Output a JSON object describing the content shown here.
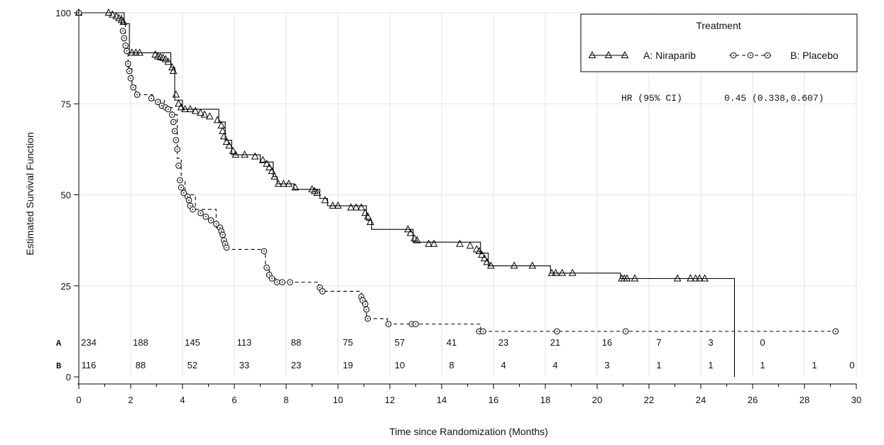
{
  "chart_data": {
    "type": "line",
    "xlabel": "Time since Randomization (Months)",
    "ylabel": "Estimated Survival Function",
    "xlim": [
      0,
      30
    ],
    "ylim": [
      0,
      100
    ],
    "x_ticks": [
      0,
      2,
      4,
      6,
      8,
      10,
      12,
      14,
      16,
      18,
      20,
      22,
      24,
      26,
      28,
      30
    ],
    "y_ticks": [
      0,
      25,
      50,
      75,
      100
    ],
    "grid": true,
    "legend": {
      "title": "Treatment",
      "position": "top-right",
      "entries": [
        "A: Niraparib",
        "B: Placebo"
      ]
    },
    "annotation": {
      "label": "HR (95% CI)",
      "value": "0.45 (0.338,0.607)"
    },
    "series": [
      {
        "name": "A: Niraparib",
        "line_style": "solid",
        "marker": "triangle",
        "color": "#000000",
        "steps": [
          [
            0,
            100
          ],
          [
            1.75,
            97
          ],
          [
            1.95,
            89
          ],
          [
            3.55,
            85
          ],
          [
            3.7,
            76
          ],
          [
            4.0,
            73.5
          ],
          [
            5.4,
            70
          ],
          [
            5.65,
            65
          ],
          [
            5.9,
            61
          ],
          [
            7.0,
            59
          ],
          [
            7.5,
            55
          ],
          [
            7.65,
            53
          ],
          [
            8.3,
            51.5
          ],
          [
            9.3,
            49
          ],
          [
            9.6,
            47
          ],
          [
            11.1,
            43
          ],
          [
            11.3,
            40.5
          ],
          [
            12.9,
            37
          ],
          [
            15.5,
            34
          ],
          [
            15.8,
            30.5
          ],
          [
            18.2,
            28.5
          ],
          [
            20.9,
            27
          ],
          [
            25.3,
            0
          ]
        ],
        "censored": [
          [
            0,
            100
          ],
          [
            1.15,
            100
          ],
          [
            1.3,
            99.5
          ],
          [
            1.45,
            99
          ],
          [
            1.55,
            98.5
          ],
          [
            1.65,
            98
          ],
          [
            1.72,
            97.5
          ],
          [
            2.05,
            89
          ],
          [
            2.2,
            89
          ],
          [
            2.35,
            89
          ],
          [
            2.95,
            88.5
          ],
          [
            3.05,
            88
          ],
          [
            3.15,
            87.8
          ],
          [
            3.25,
            87.6
          ],
          [
            3.35,
            87.2
          ],
          [
            3.45,
            86.5
          ],
          [
            3.6,
            85
          ],
          [
            3.65,
            84
          ],
          [
            3.75,
            77.5
          ],
          [
            3.85,
            75
          ],
          [
            3.95,
            74
          ],
          [
            4.1,
            73.5
          ],
          [
            4.3,
            73.5
          ],
          [
            4.5,
            73
          ],
          [
            4.7,
            72.5
          ],
          [
            4.85,
            72
          ],
          [
            5.05,
            71.5
          ],
          [
            5.35,
            70.5
          ],
          [
            5.5,
            69
          ],
          [
            5.55,
            67.5
          ],
          [
            5.6,
            66
          ],
          [
            5.7,
            64.5
          ],
          [
            5.8,
            63.5
          ],
          [
            5.95,
            62
          ],
          [
            6.05,
            61
          ],
          [
            6.4,
            61
          ],
          [
            6.8,
            60.5
          ],
          [
            7.1,
            59.5
          ],
          [
            7.25,
            58.5
          ],
          [
            7.35,
            57.5
          ],
          [
            7.45,
            56.5
          ],
          [
            7.55,
            55
          ],
          [
            7.7,
            53
          ],
          [
            7.9,
            53
          ],
          [
            8.1,
            53
          ],
          [
            8.35,
            52
          ],
          [
            9.0,
            51.5
          ],
          [
            9.1,
            51
          ],
          [
            9.2,
            50.5
          ],
          [
            9.5,
            48.5
          ],
          [
            9.8,
            47
          ],
          [
            10.0,
            47
          ],
          [
            10.5,
            46.5
          ],
          [
            10.7,
            46.5
          ],
          [
            10.9,
            46.5
          ],
          [
            11.05,
            45
          ],
          [
            11.15,
            44
          ],
          [
            11.25,
            42.5
          ],
          [
            12.7,
            40.5
          ],
          [
            12.8,
            39.5
          ],
          [
            12.95,
            38
          ],
          [
            13.05,
            37.5
          ],
          [
            13.5,
            36.5
          ],
          [
            13.7,
            36.5
          ],
          [
            14.7,
            36.5
          ],
          [
            15.1,
            36
          ],
          [
            15.35,
            35
          ],
          [
            15.45,
            34.5
          ],
          [
            15.55,
            33.5
          ],
          [
            15.65,
            32.5
          ],
          [
            15.75,
            31.5
          ],
          [
            15.9,
            30.5
          ],
          [
            16.8,
            30.5
          ],
          [
            17.5,
            30.5
          ],
          [
            18.25,
            28.5
          ],
          [
            18.4,
            28.5
          ],
          [
            18.65,
            28.5
          ],
          [
            19.05,
            28.5
          ],
          [
            20.95,
            27
          ],
          [
            21.05,
            27
          ],
          [
            21.15,
            27
          ],
          [
            21.45,
            27
          ],
          [
            23.1,
            27
          ],
          [
            23.6,
            27
          ],
          [
            23.8,
            27
          ],
          [
            23.95,
            27
          ],
          [
            24.15,
            27
          ]
        ]
      },
      {
        "name": "B: Placebo",
        "line_style": "dashed",
        "marker": "circle",
        "color": "#000000",
        "steps": [
          [
            0,
            100
          ],
          [
            1.65,
            97
          ],
          [
            1.8,
            90
          ],
          [
            1.9,
            85
          ],
          [
            2.05,
            80
          ],
          [
            2.2,
            77.5
          ],
          [
            2.85,
            76
          ],
          [
            3.3,
            74
          ],
          [
            3.6,
            72
          ],
          [
            3.8,
            60
          ],
          [
            3.95,
            54
          ],
          [
            4.1,
            50
          ],
          [
            4.5,
            46
          ],
          [
            5.3,
            41
          ],
          [
            5.55,
            37.5
          ],
          [
            5.7,
            35
          ],
          [
            7.2,
            30
          ],
          [
            7.35,
            27
          ],
          [
            7.6,
            26
          ],
          [
            9.25,
            24.5
          ],
          [
            9.4,
            23.5
          ],
          [
            10.9,
            21.5
          ],
          [
            11.1,
            16
          ],
          [
            11.9,
            14.5
          ],
          [
            15.5,
            12.5
          ],
          [
            29.2,
            12.5
          ]
        ],
        "censored": [
          [
            0,
            100
          ],
          [
            1.7,
            95
          ],
          [
            1.75,
            93
          ],
          [
            1.8,
            91
          ],
          [
            1.85,
            89.5
          ],
          [
            1.9,
            86
          ],
          [
            1.95,
            84
          ],
          [
            2.0,
            82
          ],
          [
            2.1,
            79.5
          ],
          [
            2.25,
            77.5
          ],
          [
            2.8,
            76.5
          ],
          [
            3.05,
            75.5
          ],
          [
            3.2,
            74.5
          ],
          [
            3.35,
            74
          ],
          [
            3.45,
            73.5
          ],
          [
            3.6,
            72
          ],
          [
            3.65,
            70
          ],
          [
            3.7,
            67.5
          ],
          [
            3.75,
            65
          ],
          [
            3.8,
            62.5
          ],
          [
            3.85,
            58
          ],
          [
            3.9,
            54
          ],
          [
            3.95,
            52
          ],
          [
            4.05,
            50.5
          ],
          [
            4.2,
            49.5
          ],
          [
            4.25,
            48.5
          ],
          [
            4.3,
            47
          ],
          [
            4.4,
            46
          ],
          [
            4.7,
            45
          ],
          [
            4.9,
            44
          ],
          [
            5.1,
            43
          ],
          [
            5.3,
            42
          ],
          [
            5.45,
            41
          ],
          [
            5.5,
            40
          ],
          [
            5.55,
            39
          ],
          [
            5.6,
            37.5
          ],
          [
            5.65,
            36.5
          ],
          [
            5.7,
            35.5
          ],
          [
            7.15,
            34.5
          ],
          [
            7.25,
            30
          ],
          [
            7.35,
            28
          ],
          [
            7.45,
            27
          ],
          [
            7.65,
            26
          ],
          [
            7.85,
            26
          ],
          [
            8.15,
            26
          ],
          [
            9.3,
            24.5
          ],
          [
            9.4,
            23.5
          ],
          [
            10.9,
            22
          ],
          [
            10.95,
            21
          ],
          [
            11.05,
            20
          ],
          [
            11.1,
            18.5
          ],
          [
            11.15,
            16
          ],
          [
            11.95,
            14.5
          ],
          [
            12.85,
            14.5
          ],
          [
            13.0,
            14.5
          ],
          [
            15.45,
            12.5
          ],
          [
            15.6,
            12.5
          ],
          [
            18.45,
            12.5
          ],
          [
            21.1,
            12.5
          ],
          [
            29.2,
            12.5
          ]
        ]
      }
    ],
    "risk_table": {
      "rows": [
        {
          "label": "A",
          "times": [
            0,
            2,
            4,
            6,
            8,
            10,
            12,
            14,
            16,
            18,
            20,
            22,
            24,
            26
          ],
          "counts": [
            "234",
            "188",
            "145",
            "113",
            "88",
            "75",
            "57",
            "41",
            "23",
            "21",
            "16",
            "7",
            "3",
            "0"
          ]
        },
        {
          "label": "B",
          "times": [
            0,
            2,
            4,
            6,
            8,
            10,
            12,
            14,
            16,
            18,
            20,
            22,
            24,
            26,
            28,
            30
          ],
          "counts": [
            "116",
            "88",
            "52",
            "33",
            "23",
            "19",
            "10",
            "8",
            "4",
            "4",
            "3",
            "1",
            "1",
            "1",
            "1",
            "0"
          ]
        }
      ]
    }
  }
}
